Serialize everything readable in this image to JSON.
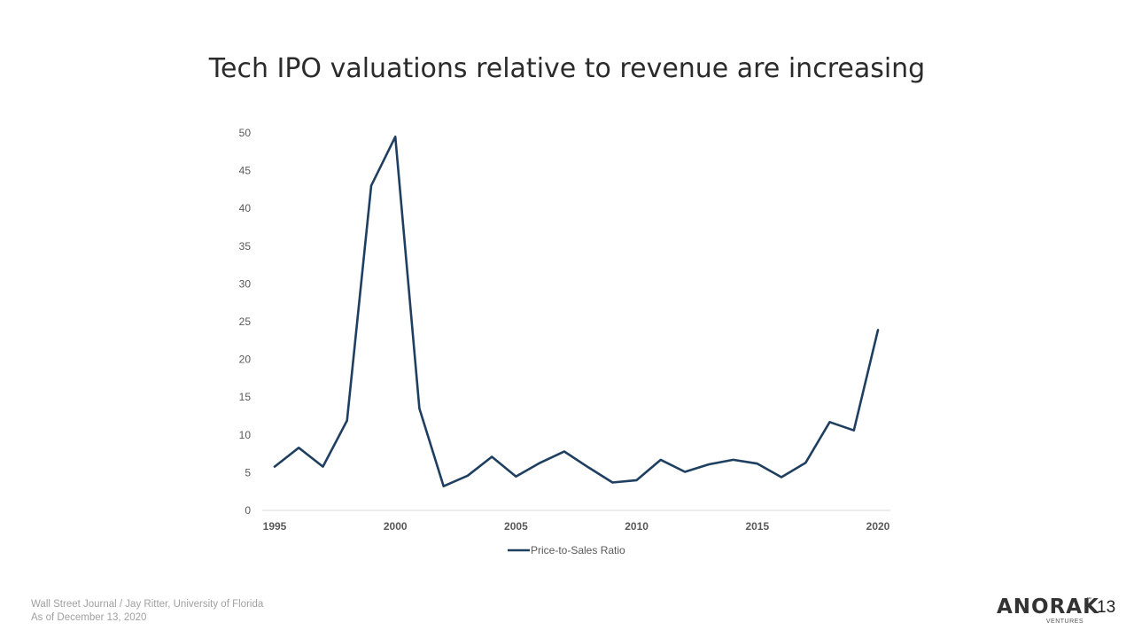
{
  "slide": {
    "title": "Tech IPO valuations relative to revenue are increasing",
    "source_line_1": "Wall Street Journal / Jay Ritter, University of Florida",
    "source_line_2": "As of December 13, 2020",
    "page_number": "13"
  },
  "logo": {
    "wordmark": "ANORAK",
    "trademark": "™",
    "subtitle": "VENTURES"
  },
  "colors": {
    "series_line": "#1f3f60",
    "axis_text": "#595959",
    "axis_line": "#d9d9d9"
  },
  "chart_data": {
    "type": "line",
    "title": "",
    "xlabel": "",
    "ylabel": "",
    "x": [
      1995,
      1996,
      1997,
      1998,
      1999,
      2000,
      2001,
      2002,
      2003,
      2004,
      2005,
      2006,
      2007,
      2008,
      2009,
      2010,
      2011,
      2012,
      2013,
      2014,
      2015,
      2016,
      2017,
      2018,
      2019,
      2020
    ],
    "series": [
      {
        "name": "Price-to-Sales Ratio",
        "values": [
          5.8,
          8.3,
          5.8,
          11.9,
          43.0,
          49.5,
          13.5,
          3.2,
          4.6,
          7.1,
          4.5,
          6.3,
          7.8,
          5.7,
          3.7,
          4.0,
          6.7,
          5.1,
          6.1,
          6.7,
          6.2,
          4.4,
          6.3,
          11.7,
          10.6,
          23.9
        ]
      }
    ],
    "xlim": [
      1995,
      2020
    ],
    "ylim": [
      0,
      50
    ],
    "x_ticks": [
      "1995",
      "2000",
      "2005",
      "2010",
      "2015",
      "2020"
    ],
    "y_ticks": [
      "0",
      "5",
      "10",
      "15",
      "20",
      "25",
      "30",
      "35",
      "40",
      "45",
      "50"
    ],
    "grid": false,
    "legend_position": "bottom"
  }
}
